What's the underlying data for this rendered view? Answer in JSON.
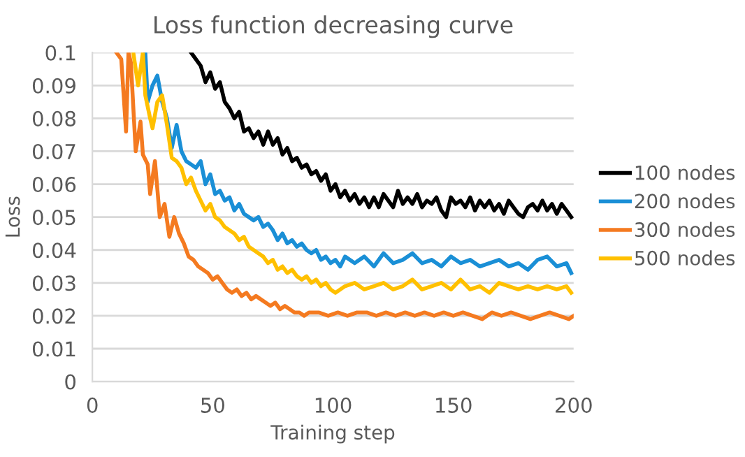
{
  "chart_data": {
    "type": "line",
    "title": "Loss function decreasing curve",
    "xlabel": "Training step",
    "ylabel": "Loss",
    "xlim": [
      0,
      200
    ],
    "xticks": [
      0,
      50,
      100,
      150,
      200
    ],
    "ylim": [
      0,
      0.1
    ],
    "yticks": [
      0,
      0.01,
      0.02,
      0.03,
      0.04,
      0.05,
      0.06,
      0.07,
      0.08,
      0.09,
      0.1
    ],
    "grid": "y",
    "legend": "right",
    "marker": "none",
    "line_style": "solid",
    "series": [
      {
        "name": "100 nodes",
        "color": "#000000",
        "x": [
          41,
          43,
          45,
          47,
          49,
          51,
          53,
          55,
          57,
          59,
          61,
          63,
          65,
          67,
          69,
          71,
          73,
          75,
          77,
          79,
          81,
          83,
          85,
          87,
          89,
          91,
          93,
          95,
          97,
          99,
          101,
          103,
          105,
          107,
          109,
          111,
          113,
          115,
          117,
          119,
          121,
          123,
          125,
          127,
          129,
          131,
          133,
          135,
          137,
          139,
          141,
          143,
          145,
          147,
          149,
          151,
          153,
          155,
          157,
          159,
          161,
          163,
          165,
          167,
          169,
          171,
          173,
          175,
          177,
          179,
          181,
          183,
          185,
          187,
          189,
          191,
          193,
          195,
          197,
          199
        ],
        "values": [
          0.1,
          0.098,
          0.096,
          0.091,
          0.094,
          0.089,
          0.091,
          0.085,
          0.083,
          0.08,
          0.082,
          0.076,
          0.077,
          0.074,
          0.076,
          0.072,
          0.076,
          0.072,
          0.074,
          0.069,
          0.071,
          0.067,
          0.068,
          0.065,
          0.066,
          0.063,
          0.064,
          0.061,
          0.063,
          0.058,
          0.06,
          0.056,
          0.058,
          0.055,
          0.057,
          0.054,
          0.056,
          0.053,
          0.056,
          0.053,
          0.057,
          0.055,
          0.053,
          0.058,
          0.054,
          0.056,
          0.054,
          0.057,
          0.053,
          0.055,
          0.054,
          0.056,
          0.052,
          0.05,
          0.056,
          0.054,
          0.055,
          0.053,
          0.056,
          0.052,
          0.055,
          0.053,
          0.055,
          0.052,
          0.054,
          0.051,
          0.055,
          0.053,
          0.051,
          0.05,
          0.053,
          0.054,
          0.052,
          0.055,
          0.052,
          0.054,
          0.051,
          0.054,
          0.052,
          0.05
        ]
      },
      {
        "name": "200 nodes",
        "color": "#1a8fd6",
        "x": [
          22,
          23,
          25,
          27,
          29,
          31,
          33,
          35,
          37,
          39,
          41,
          43,
          45,
          47,
          49,
          51,
          53,
          55,
          57,
          59,
          61,
          63,
          65,
          67,
          69,
          71,
          73,
          75,
          77,
          79,
          81,
          83,
          85,
          87,
          89,
          91,
          93,
          95,
          97,
          99,
          101,
          103,
          105,
          109,
          113,
          117,
          121,
          125,
          129,
          133,
          137,
          141,
          145,
          149,
          153,
          157,
          161,
          165,
          169,
          173,
          177,
          181,
          185,
          189,
          193,
          197,
          199
        ],
        "values": [
          0.1,
          0.085,
          0.09,
          0.093,
          0.085,
          0.08,
          0.071,
          0.078,
          0.07,
          0.067,
          0.066,
          0.065,
          0.067,
          0.06,
          0.063,
          0.057,
          0.058,
          0.055,
          0.056,
          0.052,
          0.054,
          0.051,
          0.05,
          0.049,
          0.05,
          0.047,
          0.048,
          0.046,
          0.043,
          0.045,
          0.042,
          0.043,
          0.041,
          0.042,
          0.04,
          0.039,
          0.04,
          0.037,
          0.038,
          0.036,
          0.037,
          0.035,
          0.038,
          0.036,
          0.038,
          0.035,
          0.039,
          0.036,
          0.037,
          0.039,
          0.036,
          0.037,
          0.035,
          0.038,
          0.036,
          0.037,
          0.035,
          0.036,
          0.037,
          0.035,
          0.036,
          0.034,
          0.037,
          0.038,
          0.035,
          0.036,
          0.033
        ]
      },
      {
        "name": "300 nodes",
        "color": "#f47a20",
        "x": [
          10,
          12,
          14,
          15,
          16,
          18,
          20,
          21,
          23,
          24,
          26,
          28,
          30,
          32,
          34,
          36,
          38,
          40,
          42,
          44,
          46,
          48,
          50,
          52,
          54,
          56,
          58,
          60,
          62,
          64,
          66,
          68,
          70,
          72,
          74,
          76,
          78,
          80,
          82,
          84,
          86,
          88,
          90,
          94,
          98,
          102,
          106,
          110,
          114,
          118,
          122,
          126,
          130,
          134,
          138,
          142,
          146,
          150,
          154,
          158,
          162,
          166,
          170,
          174,
          178,
          182,
          186,
          190,
          194,
          198,
          200
        ],
        "values": [
          0.1,
          0.098,
          0.076,
          0.1,
          0.097,
          0.07,
          0.079,
          0.069,
          0.066,
          0.057,
          0.067,
          0.05,
          0.054,
          0.044,
          0.05,
          0.045,
          0.042,
          0.038,
          0.037,
          0.035,
          0.034,
          0.033,
          0.031,
          0.032,
          0.03,
          0.028,
          0.027,
          0.028,
          0.026,
          0.027,
          0.025,
          0.026,
          0.025,
          0.024,
          0.023,
          0.024,
          0.022,
          0.023,
          0.022,
          0.021,
          0.021,
          0.02,
          0.021,
          0.021,
          0.02,
          0.021,
          0.02,
          0.021,
          0.021,
          0.02,
          0.021,
          0.02,
          0.021,
          0.02,
          0.021,
          0.02,
          0.021,
          0.02,
          0.021,
          0.02,
          0.019,
          0.021,
          0.02,
          0.021,
          0.02,
          0.019,
          0.02,
          0.021,
          0.02,
          0.019,
          0.02
        ]
      },
      {
        "name": "500 nodes",
        "color": "#ffc000",
        "x": [
          17,
          19,
          21,
          22,
          24,
          25,
          27,
          29,
          31,
          33,
          35,
          37,
          39,
          41,
          43,
          45,
          47,
          49,
          51,
          53,
          55,
          57,
          59,
          61,
          63,
          65,
          67,
          69,
          71,
          73,
          75,
          77,
          79,
          81,
          83,
          85,
          87,
          89,
          91,
          93,
          95,
          97,
          99,
          101,
          105,
          109,
          113,
          117,
          121,
          125,
          129,
          133,
          137,
          141,
          145,
          149,
          153,
          157,
          161,
          165,
          169,
          173,
          177,
          181,
          185,
          189,
          193,
          197,
          199
        ],
        "values": [
          0.1,
          0.09,
          0.1,
          0.087,
          0.08,
          0.077,
          0.085,
          0.087,
          0.078,
          0.068,
          0.067,
          0.065,
          0.06,
          0.062,
          0.058,
          0.055,
          0.052,
          0.054,
          0.05,
          0.049,
          0.047,
          0.046,
          0.045,
          0.043,
          0.044,
          0.041,
          0.04,
          0.039,
          0.038,
          0.036,
          0.037,
          0.034,
          0.035,
          0.033,
          0.034,
          0.032,
          0.031,
          0.032,
          0.03,
          0.031,
          0.029,
          0.03,
          0.028,
          0.027,
          0.029,
          0.03,
          0.028,
          0.029,
          0.03,
          0.028,
          0.029,
          0.031,
          0.028,
          0.029,
          0.03,
          0.028,
          0.031,
          0.028,
          0.029,
          0.027,
          0.03,
          0.029,
          0.028,
          0.029,
          0.028,
          0.029,
          0.028,
          0.029,
          0.027
        ]
      }
    ]
  }
}
